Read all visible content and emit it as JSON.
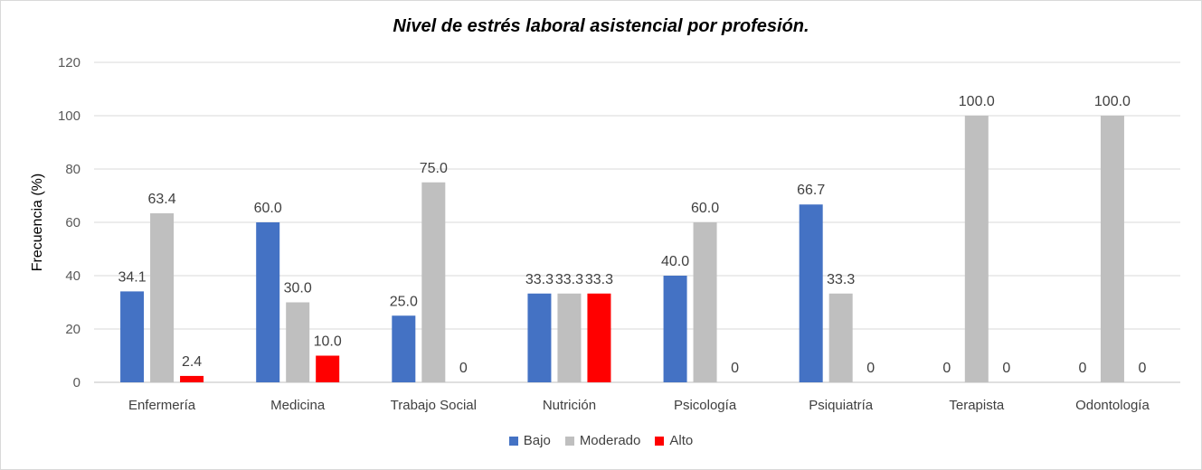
{
  "chart_data": {
    "type": "bar",
    "title": "Nivel de estrés laboral asistencial por profesión.",
    "xlabel": "",
    "ylabel": "Frecuencia (%)",
    "ylim": [
      0,
      120
    ],
    "yticks": [
      0,
      20,
      40,
      60,
      80,
      100,
      120
    ],
    "grid": true,
    "legend_position": "bottom",
    "categories": [
      "Enfermería",
      "Medicina",
      "Trabajo Social",
      "Nutrición",
      "Psicología",
      "Psiquiatría",
      "Terapista",
      "Odontología"
    ],
    "series": [
      {
        "name": "Bajo",
        "color": "#4472c4",
        "values": [
          34.1,
          60.0,
          25.0,
          33.3,
          40.0,
          66.7,
          0,
          0
        ],
        "labels": [
          "34.1",
          "60.0",
          "25.0",
          "33.3",
          "40.0",
          "66.7",
          "0",
          "0"
        ]
      },
      {
        "name": "Moderado",
        "color": "#bfbfbf",
        "values": [
          63.4,
          30.0,
          75.0,
          33.3,
          60.0,
          33.3,
          100.0,
          100.0
        ],
        "labels": [
          "63.4",
          "30.0",
          "75.0",
          "33.3",
          "60.0",
          "33.3",
          "100.0",
          "100.0"
        ]
      },
      {
        "name": "Alto",
        "color": "#ff0000",
        "values": [
          2.4,
          10.0,
          0,
          33.3,
          0,
          0,
          0,
          0
        ],
        "labels": [
          "2.4",
          "10.0",
          "0",
          "33.3",
          "0",
          "0",
          "0",
          "0"
        ]
      }
    ]
  }
}
